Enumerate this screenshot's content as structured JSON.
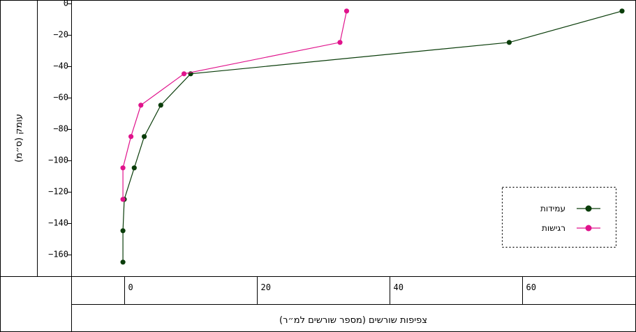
{
  "chart_data": {
    "type": "line",
    "xlabel": "צפיפות שורשים (מספר שורשים למ״ר)",
    "ylabel": "עומק (ס״מ)",
    "xlim": [
      -8,
      77
    ],
    "ylim": [
      -174,
      2
    ],
    "xticks": [
      0,
      20,
      40,
      60
    ],
    "yticks": [
      0,
      -20,
      -40,
      -60,
      -80,
      -100,
      -120,
      -140,
      -160
    ],
    "grid": false,
    "legend_position": "bottom-right",
    "series": [
      {
        "name": "עמידות",
        "color": "#0a3d0a",
        "x": [
          75,
          58,
          10,
          5.5,
          3,
          1.5,
          0,
          -0.2,
          -0.2
        ],
        "y": [
          -5,
          -25,
          -45,
          -65,
          -85,
          -105,
          -125,
          -145,
          -165
        ]
      },
      {
        "name": "רגישות",
        "color": "#e0138c",
        "x": [
          33.5,
          32.5,
          9,
          2.5,
          1,
          -0.2,
          -0.2
        ],
        "y": [
          -5,
          -25,
          -45,
          -65,
          -85,
          -105,
          -125
        ]
      }
    ]
  }
}
